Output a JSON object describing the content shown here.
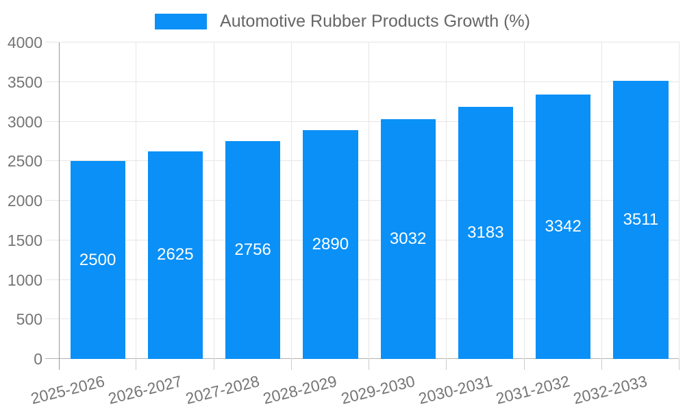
{
  "legend": {
    "label": "Automotive Rubber Products Growth (%)"
  },
  "colors": {
    "bar": "#0a90f6",
    "grid": "#e6e6e6",
    "y_axis_line": "#999999",
    "baseline": "#b3b3b3",
    "x_tick": "#cccccc",
    "axis_text": "#757575",
    "legend_text": "#666666",
    "value_text": "#ffffff",
    "background": "#ffffff"
  },
  "chart_data": {
    "type": "bar",
    "title": "Automotive Rubber Products Growth (%)",
    "series_name": "Automotive Rubber Products Growth (%)",
    "categories": [
      "2025-2026",
      "2026-2027",
      "2027-2028",
      "2028-2029",
      "2029-2030",
      "2030-2031",
      "2031-2032",
      "2032-2033"
    ],
    "values": [
      2500,
      2625,
      2756,
      2890,
      3032,
      3183,
      3342,
      3511
    ],
    "xlabel": "",
    "ylabel": "",
    "ylim": [
      0,
      4000
    ],
    "ytick_step": 500,
    "yticks": [
      0,
      500,
      1000,
      1500,
      2000,
      2500,
      3000,
      3500,
      4000
    ],
    "grid": true,
    "legend_position": "top-center",
    "bar_label_position": "inside-center",
    "x_label_rotation_deg": -14
  }
}
